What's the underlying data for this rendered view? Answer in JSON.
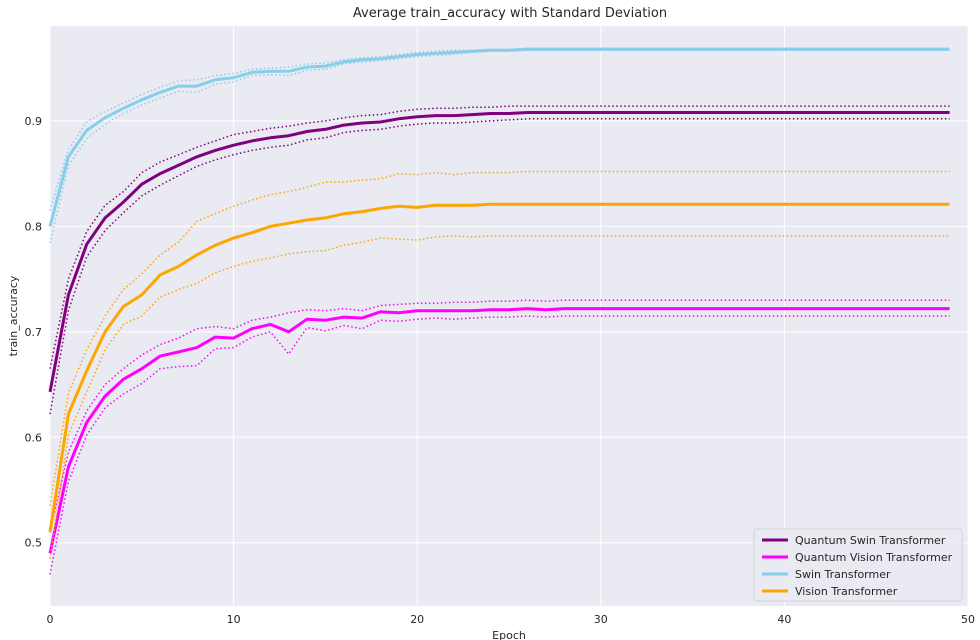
{
  "chart_data": {
    "type": "line",
    "title": "Average train_accuracy with Standard Deviation",
    "xlabel": "Epoch",
    "ylabel": "train_accuracy",
    "xlim": [
      0,
      50
    ],
    "ylim": [
      0.44,
      0.99
    ],
    "xticks": [
      0,
      10,
      20,
      30,
      40,
      50
    ],
    "yticks": [
      0.5,
      0.6,
      0.7,
      0.8,
      0.9
    ],
    "grid": true,
    "legend_position": "lower-right",
    "background": "#eaeaf2",
    "series": [
      {
        "name": "Quantum Swin Transformer",
        "color": "#800080",
        "x": [
          0,
          1,
          2,
          3,
          4,
          5,
          6,
          7,
          8,
          9,
          10,
          11,
          12,
          13,
          14,
          15,
          16,
          17,
          18,
          19,
          20,
          21,
          22,
          23,
          24,
          25,
          26,
          27,
          28,
          29,
          30,
          31,
          32,
          33,
          34,
          35,
          36,
          37,
          38,
          39,
          40,
          41,
          42,
          43,
          44,
          45,
          46,
          47,
          48,
          49
        ],
        "mean": [
          0.643,
          0.735,
          0.783,
          0.808,
          0.823,
          0.84,
          0.85,
          0.858,
          0.866,
          0.872,
          0.877,
          0.881,
          0.884,
          0.886,
          0.89,
          0.892,
          0.896,
          0.898,
          0.899,
          0.902,
          0.904,
          0.905,
          0.905,
          0.906,
          0.907,
          0.907,
          0.908,
          0.908,
          0.908,
          0.908,
          0.908,
          0.908,
          0.908,
          0.908,
          0.908,
          0.908,
          0.908,
          0.908,
          0.908,
          0.908,
          0.908,
          0.908,
          0.908,
          0.908,
          0.908,
          0.908,
          0.908,
          0.908,
          0.908,
          0.908
        ],
        "upper": [
          0.665,
          0.75,
          0.795,
          0.82,
          0.833,
          0.851,
          0.861,
          0.868,
          0.875,
          0.881,
          0.887,
          0.89,
          0.893,
          0.895,
          0.898,
          0.9,
          0.903,
          0.905,
          0.906,
          0.909,
          0.911,
          0.912,
          0.912,
          0.913,
          0.913,
          0.914,
          0.914,
          0.914,
          0.914,
          0.914,
          0.914,
          0.914,
          0.914,
          0.914,
          0.914,
          0.914,
          0.914,
          0.914,
          0.914,
          0.914,
          0.914,
          0.914,
          0.914,
          0.914,
          0.914,
          0.914,
          0.914,
          0.914,
          0.914,
          0.914
        ],
        "lower": [
          0.622,
          0.72,
          0.771,
          0.796,
          0.813,
          0.829,
          0.839,
          0.848,
          0.857,
          0.863,
          0.868,
          0.872,
          0.875,
          0.877,
          0.882,
          0.884,
          0.889,
          0.891,
          0.892,
          0.895,
          0.897,
          0.898,
          0.898,
          0.899,
          0.9,
          0.901,
          0.902,
          0.902,
          0.902,
          0.902,
          0.902,
          0.902,
          0.902,
          0.902,
          0.902,
          0.902,
          0.902,
          0.902,
          0.902,
          0.902,
          0.902,
          0.902,
          0.902,
          0.902,
          0.902,
          0.902,
          0.902,
          0.902,
          0.902,
          0.902
        ]
      },
      {
        "name": "Quantum Vision Transformer",
        "color": "#ff00ff",
        "x": [
          0,
          1,
          2,
          3,
          4,
          5,
          6,
          7,
          8,
          9,
          10,
          11,
          12,
          13,
          14,
          15,
          16,
          17,
          18,
          19,
          20,
          21,
          22,
          23,
          24,
          25,
          26,
          27,
          28,
          29,
          30,
          31,
          32,
          33,
          34,
          35,
          36,
          37,
          38,
          39,
          40,
          41,
          42,
          43,
          44,
          45,
          46,
          47,
          48,
          49
        ],
        "mean": [
          0.49,
          0.572,
          0.614,
          0.639,
          0.655,
          0.665,
          0.677,
          0.681,
          0.685,
          0.695,
          0.694,
          0.703,
          0.707,
          0.7,
          0.712,
          0.711,
          0.714,
          0.713,
          0.719,
          0.718,
          0.72,
          0.72,
          0.72,
          0.72,
          0.721,
          0.721,
          0.722,
          0.721,
          0.722,
          0.722,
          0.722,
          0.722,
          0.722,
          0.722,
          0.722,
          0.722,
          0.722,
          0.722,
          0.722,
          0.722,
          0.722,
          0.722,
          0.722,
          0.722,
          0.722,
          0.722,
          0.722,
          0.722,
          0.722,
          0.722
        ],
        "upper": [
          0.51,
          0.586,
          0.625,
          0.65,
          0.665,
          0.678,
          0.688,
          0.694,
          0.703,
          0.705,
          0.703,
          0.711,
          0.714,
          0.718,
          0.721,
          0.72,
          0.722,
          0.72,
          0.725,
          0.726,
          0.727,
          0.727,
          0.728,
          0.728,
          0.729,
          0.729,
          0.73,
          0.729,
          0.73,
          0.73,
          0.73,
          0.73,
          0.73,
          0.73,
          0.73,
          0.73,
          0.73,
          0.73,
          0.73,
          0.73,
          0.73,
          0.73,
          0.73,
          0.73,
          0.73,
          0.73,
          0.73,
          0.73,
          0.73,
          0.73
        ],
        "lower": [
          0.47,
          0.558,
          0.602,
          0.628,
          0.641,
          0.651,
          0.665,
          0.667,
          0.668,
          0.684,
          0.685,
          0.695,
          0.7,
          0.679,
          0.704,
          0.701,
          0.706,
          0.703,
          0.711,
          0.71,
          0.712,
          0.713,
          0.712,
          0.713,
          0.714,
          0.714,
          0.715,
          0.714,
          0.715,
          0.715,
          0.715,
          0.715,
          0.715,
          0.715,
          0.715,
          0.715,
          0.715,
          0.715,
          0.715,
          0.715,
          0.715,
          0.715,
          0.715,
          0.715,
          0.715,
          0.715,
          0.715,
          0.715,
          0.715,
          0.715
        ]
      },
      {
        "name": "Swin Transformer",
        "color": "#87ceeb",
        "x": [
          0,
          1,
          2,
          3,
          4,
          5,
          6,
          7,
          8,
          9,
          10,
          11,
          12,
          13,
          14,
          15,
          16,
          17,
          18,
          19,
          20,
          21,
          22,
          23,
          24,
          25,
          26,
          27,
          28,
          29,
          30,
          31,
          32,
          33,
          34,
          35,
          36,
          37,
          38,
          39,
          40,
          41,
          42,
          43,
          44,
          45,
          46,
          47,
          48,
          49
        ],
        "mean": [
          0.8,
          0.866,
          0.891,
          0.903,
          0.912,
          0.92,
          0.927,
          0.933,
          0.933,
          0.939,
          0.941,
          0.946,
          0.947,
          0.947,
          0.951,
          0.952,
          0.956,
          0.958,
          0.959,
          0.961,
          0.963,
          0.964,
          0.965,
          0.966,
          0.967,
          0.967,
          0.968,
          0.968,
          0.968,
          0.968,
          0.968,
          0.968,
          0.968,
          0.968,
          0.968,
          0.968,
          0.968,
          0.968,
          0.968,
          0.968,
          0.968,
          0.968,
          0.968,
          0.968,
          0.968,
          0.968,
          0.968,
          0.968,
          0.968,
          0.968
        ],
        "upper": [
          0.815,
          0.873,
          0.899,
          0.909,
          0.917,
          0.925,
          0.932,
          0.938,
          0.939,
          0.943,
          0.945,
          0.949,
          0.95,
          0.951,
          0.954,
          0.955,
          0.958,
          0.96,
          0.961,
          0.963,
          0.965,
          0.966,
          0.967,
          0.967,
          0.968,
          0.968,
          0.969,
          0.969,
          0.969,
          0.969,
          0.969,
          0.969,
          0.969,
          0.969,
          0.969,
          0.969,
          0.969,
          0.969,
          0.969,
          0.969,
          0.969,
          0.969,
          0.969,
          0.969,
          0.969,
          0.969,
          0.969,
          0.969,
          0.969,
          0.969
        ],
        "lower": [
          0.784,
          0.858,
          0.883,
          0.897,
          0.907,
          0.915,
          0.922,
          0.928,
          0.927,
          0.935,
          0.937,
          0.943,
          0.944,
          0.943,
          0.948,
          0.949,
          0.954,
          0.956,
          0.957,
          0.959,
          0.961,
          0.962,
          0.963,
          0.965,
          0.966,
          0.966,
          0.967,
          0.967,
          0.967,
          0.967,
          0.967,
          0.967,
          0.967,
          0.967,
          0.967,
          0.967,
          0.967,
          0.967,
          0.967,
          0.967,
          0.967,
          0.967,
          0.967,
          0.967,
          0.967,
          0.967,
          0.967,
          0.967,
          0.967,
          0.967
        ]
      },
      {
        "name": "Vision Transformer",
        "color": "#ffa500",
        "x": [
          0,
          1,
          2,
          3,
          4,
          5,
          6,
          7,
          8,
          9,
          10,
          11,
          12,
          13,
          14,
          15,
          16,
          17,
          18,
          19,
          20,
          21,
          22,
          23,
          24,
          25,
          26,
          27,
          28,
          29,
          30,
          31,
          32,
          33,
          34,
          35,
          36,
          37,
          38,
          39,
          40,
          41,
          42,
          43,
          44,
          45,
          46,
          47,
          48,
          49
        ],
        "mean": [
          0.51,
          0.622,
          0.663,
          0.7,
          0.724,
          0.735,
          0.754,
          0.762,
          0.773,
          0.782,
          0.789,
          0.794,
          0.8,
          0.803,
          0.806,
          0.808,
          0.812,
          0.814,
          0.817,
          0.819,
          0.818,
          0.82,
          0.82,
          0.82,
          0.821,
          0.821,
          0.821,
          0.821,
          0.821,
          0.821,
          0.821,
          0.821,
          0.821,
          0.821,
          0.821,
          0.821,
          0.821,
          0.821,
          0.821,
          0.821,
          0.821,
          0.821,
          0.821,
          0.821,
          0.821,
          0.821,
          0.821,
          0.821,
          0.821,
          0.821
        ],
        "upper": [
          0.535,
          0.642,
          0.683,
          0.715,
          0.74,
          0.755,
          0.773,
          0.785,
          0.805,
          0.812,
          0.819,
          0.825,
          0.83,
          0.833,
          0.837,
          0.842,
          0.842,
          0.844,
          0.845,
          0.85,
          0.849,
          0.851,
          0.849,
          0.851,
          0.851,
          0.851,
          0.852,
          0.852,
          0.852,
          0.852,
          0.852,
          0.852,
          0.852,
          0.852,
          0.852,
          0.852,
          0.852,
          0.852,
          0.852,
          0.852,
          0.852,
          0.852,
          0.852,
          0.852,
          0.852,
          0.852,
          0.852,
          0.852,
          0.852,
          0.852
        ],
        "lower": [
          0.485,
          0.602,
          0.643,
          0.683,
          0.707,
          0.715,
          0.733,
          0.74,
          0.746,
          0.756,
          0.762,
          0.767,
          0.77,
          0.774,
          0.776,
          0.777,
          0.782,
          0.785,
          0.789,
          0.788,
          0.787,
          0.79,
          0.791,
          0.79,
          0.791,
          0.791,
          0.791,
          0.791,
          0.791,
          0.791,
          0.791,
          0.791,
          0.791,
          0.791,
          0.791,
          0.791,
          0.791,
          0.791,
          0.791,
          0.791,
          0.791,
          0.791,
          0.791,
          0.791,
          0.791,
          0.791,
          0.791,
          0.791,
          0.791,
          0.791
        ]
      }
    ]
  }
}
